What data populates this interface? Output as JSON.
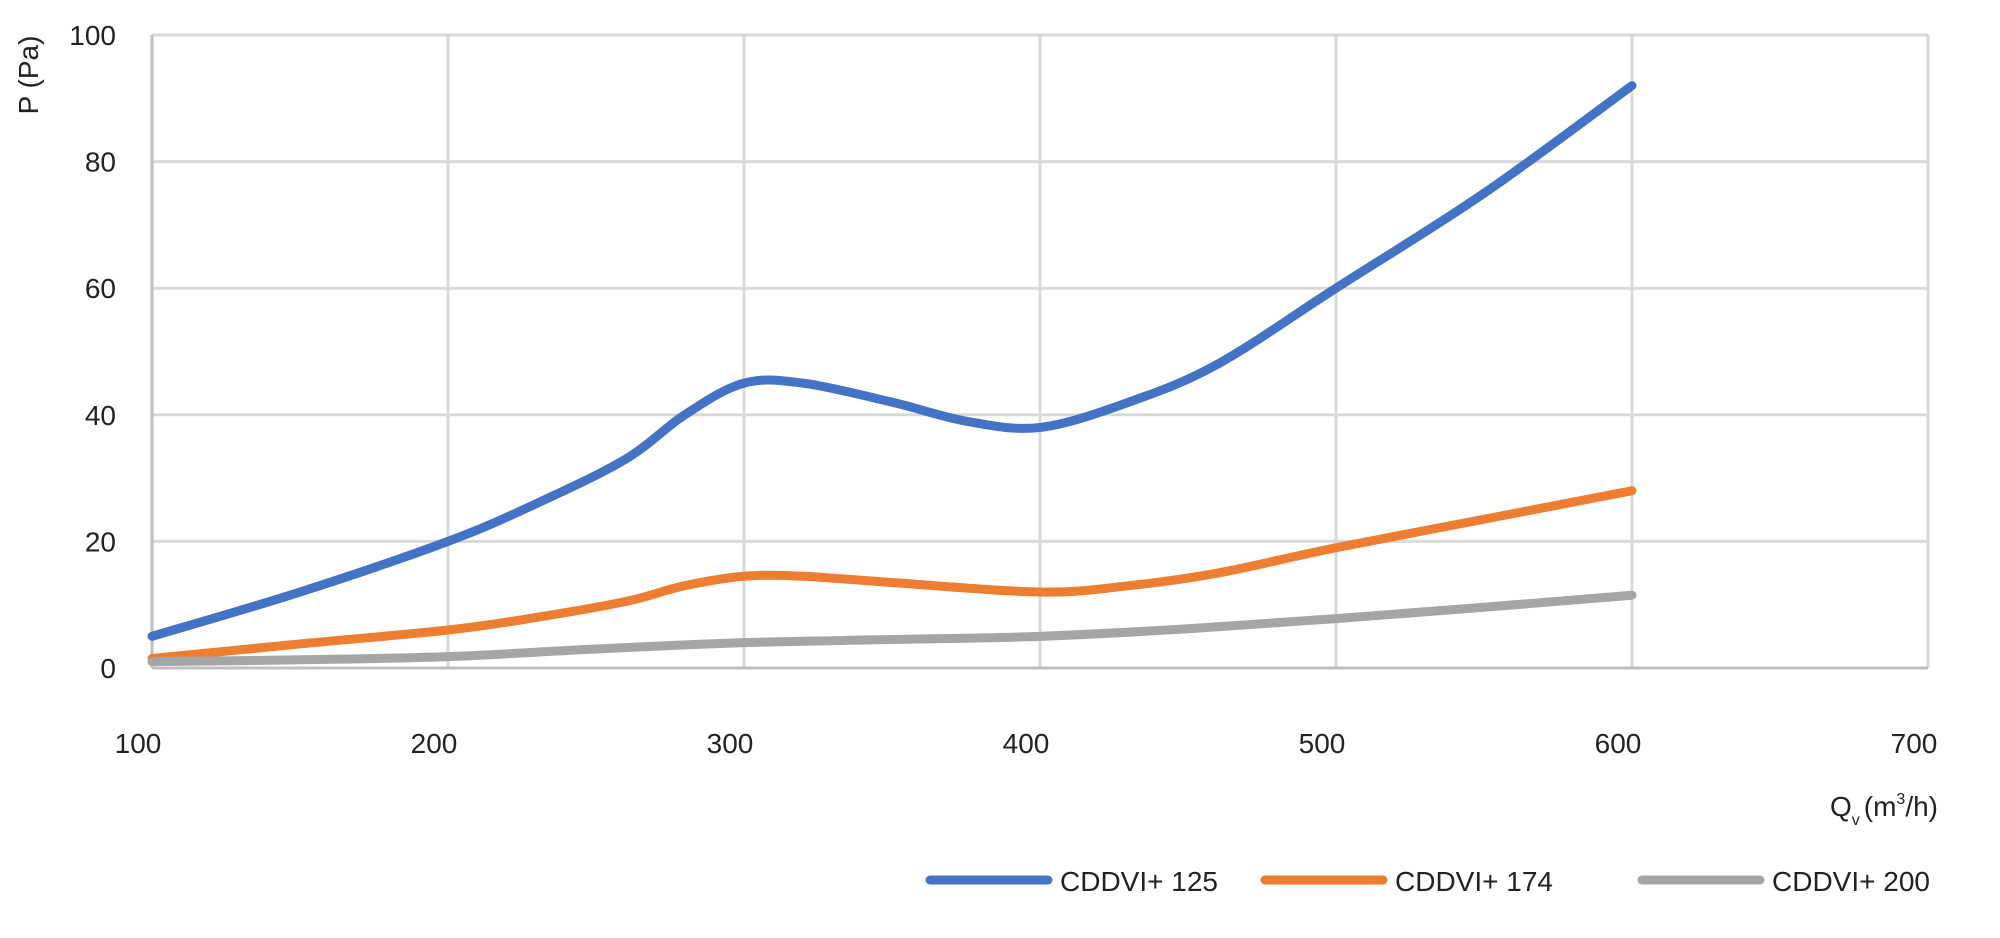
{
  "chart_data": {
    "type": "line",
    "title": "",
    "ylabel": "P (Pa)",
    "xlabel": {
      "main": "Q",
      "subscript": "v",
      "unit_prefix": "(m",
      "superscript": "3",
      "unit_suffix": "/h)"
    },
    "xlim": [
      100,
      700
    ],
    "ylim": [
      0,
      100
    ],
    "x_ticks": [
      100,
      200,
      300,
      400,
      500,
      600,
      700
    ],
    "y_ticks": [
      0,
      20,
      40,
      60,
      80,
      100
    ],
    "grid": true,
    "legend_position": "bottom-right",
    "series": [
      {
        "name": "CDDVI+ 125",
        "color": "#4472C4",
        "points": [
          [
            100,
            5
          ],
          [
            150,
            12
          ],
          [
            200,
            20
          ],
          [
            230,
            26
          ],
          [
            260,
            33
          ],
          [
            280,
            40
          ],
          [
            300,
            45
          ],
          [
            320,
            45
          ],
          [
            350,
            42
          ],
          [
            375,
            39
          ],
          [
            400,
            38
          ],
          [
            430,
            42
          ],
          [
            460,
            48
          ],
          [
            500,
            60
          ],
          [
            550,
            75
          ],
          [
            600,
            92
          ]
        ]
      },
      {
        "name": "CDDVI+ 174",
        "color": "#ED7D31",
        "points": [
          [
            100,
            1.5
          ],
          [
            150,
            3.8
          ],
          [
            200,
            6
          ],
          [
            230,
            8
          ],
          [
            260,
            10.5
          ],
          [
            280,
            13
          ],
          [
            300,
            14.5
          ],
          [
            320,
            14.5
          ],
          [
            350,
            13.5
          ],
          [
            400,
            12
          ],
          [
            430,
            13
          ],
          [
            460,
            15
          ],
          [
            500,
            19
          ],
          [
            550,
            23.5
          ],
          [
            600,
            28
          ]
        ]
      },
      {
        "name": "CDDVI+ 200",
        "color": "#A5A5A5",
        "points": [
          [
            100,
            1
          ],
          [
            150,
            1.3
          ],
          [
            200,
            1.8
          ],
          [
            250,
            3
          ],
          [
            300,
            4
          ],
          [
            350,
            4.5
          ],
          [
            400,
            5
          ],
          [
            450,
            6.2
          ],
          [
            500,
            7.8
          ],
          [
            550,
            9.6
          ],
          [
            600,
            11.5
          ]
        ]
      }
    ]
  }
}
